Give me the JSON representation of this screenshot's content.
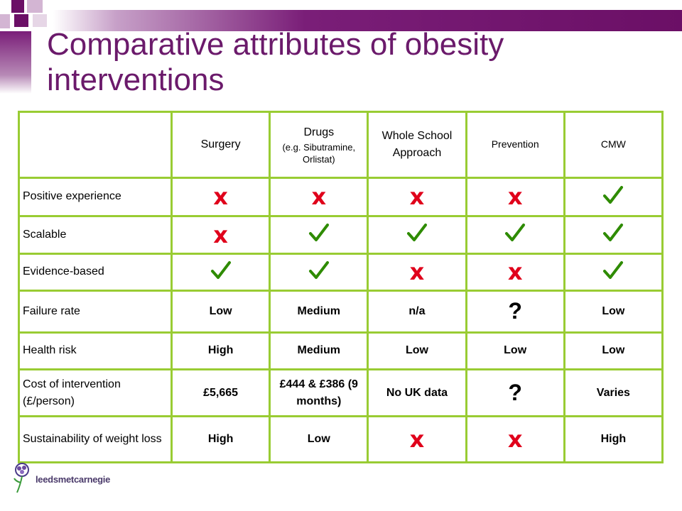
{
  "title": "Comparative attributes of obesity interventions",
  "logo_text": "leedsmetcarnegie",
  "columns": [
    {
      "label": "Surgery"
    },
    {
      "label": "Drugs",
      "sub": "(e.g. Sibutramine, Orlistat)"
    },
    {
      "label": "Whole School Approach"
    },
    {
      "label": "Prevention"
    },
    {
      "label": "CMW"
    }
  ],
  "rows": [
    {
      "label": "Positive experience",
      "cells": [
        "cross",
        "cross",
        "cross",
        "cross",
        "check"
      ]
    },
    {
      "label": "Scalable",
      "cells": [
        "cross",
        "check",
        "check",
        "check",
        "check"
      ]
    },
    {
      "label": "Evidence-based",
      "cells": [
        "check",
        "check",
        "cross",
        "cross",
        "check"
      ]
    },
    {
      "label": "Failure rate",
      "cells": [
        "Low",
        "Medium",
        "n/a",
        "?",
        "Low"
      ]
    },
    {
      "label": "Health risk",
      "cells": [
        "High",
        "Medium",
        "Low",
        "Low",
        "Low"
      ]
    },
    {
      "label": "Cost of intervention (£/person)",
      "cells": [
        "£5,665",
        "£444 & £386 (9 months)",
        "No UK data",
        "?",
        "Varies"
      ]
    },
    {
      "label": "Sustainability of weight loss",
      "cells": [
        "High",
        "Low",
        "cross",
        "cross",
        "High"
      ]
    }
  ],
  "marks": {
    "cross": "x",
    "question": "?"
  },
  "colors": {
    "title": "#6b1a6b",
    "border": "#99cc33",
    "cross": "#e0001b",
    "check": "#2e8b00"
  }
}
